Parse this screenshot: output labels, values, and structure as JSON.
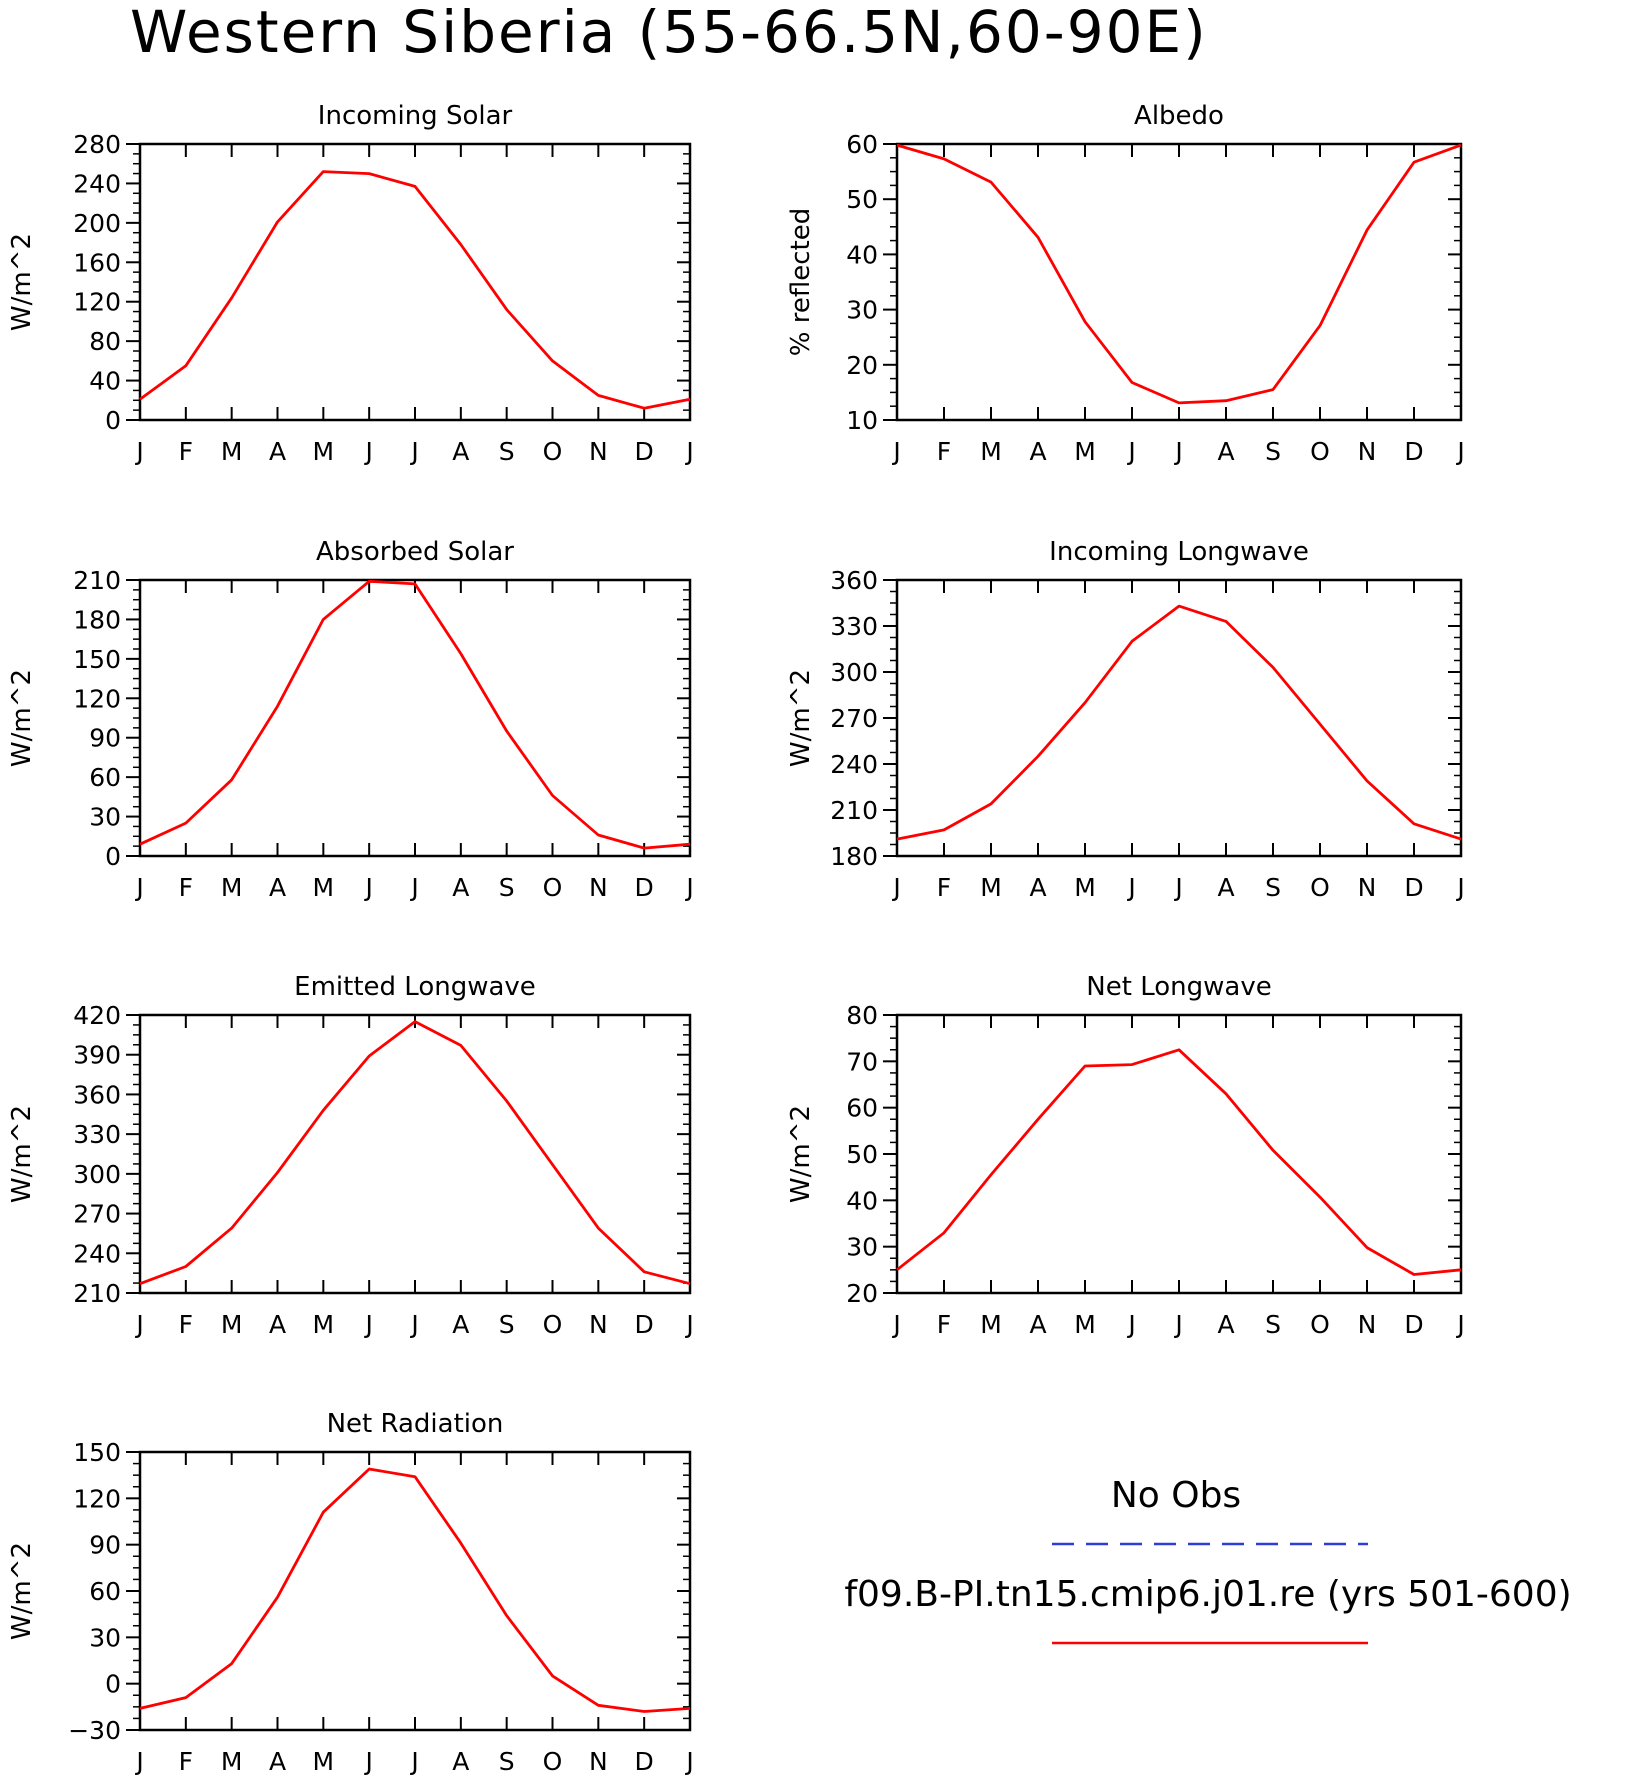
{
  "figure": {
    "title": "Western Siberia (55-66.5N,60-90E)"
  },
  "legend": {
    "obs_label": "No Obs",
    "obs_color": "#2b3fd6",
    "model_label": "f09.B-PI.tn15.cmip6.j01.re (yrs 501-600)",
    "model_color": "#ff0000"
  },
  "chart_data": [
    {
      "type": "line",
      "title": "Incoming Solar",
      "ylabel": "W/m^2",
      "categories": [
        "J",
        "F",
        "M",
        "A",
        "M",
        "J",
        "J",
        "A",
        "S",
        "O",
        "N",
        "D",
        "J"
      ],
      "ylim": [
        0,
        280
      ],
      "yticks": [
        0,
        40,
        80,
        120,
        160,
        200,
        240,
        280
      ],
      "series": [
        {
          "color": "#ff0000",
          "values": [
            21,
            55,
            124,
            201,
            252,
            250,
            237,
            178,
            112,
            60,
            25,
            12,
            21
          ]
        }
      ]
    },
    {
      "type": "line",
      "title": "Albedo",
      "ylabel": "% reflected",
      "categories": [
        "J",
        "F",
        "M",
        "A",
        "M",
        "J",
        "J",
        "A",
        "S",
        "O",
        "N",
        "D",
        "J"
      ],
      "ylim": [
        10,
        60
      ],
      "yticks": [
        10,
        20,
        30,
        40,
        50,
        60
      ],
      "series": [
        {
          "color": "#ff0000",
          "values": [
            59.8,
            57.3,
            53.1,
            43.1,
            27.8,
            16.8,
            13.1,
            13.5,
            15.5,
            27.1,
            44.4,
            56.7,
            59.8
          ]
        }
      ]
    },
    {
      "type": "line",
      "title": "Absorbed Solar",
      "ylabel": "W/m^2",
      "categories": [
        "J",
        "F",
        "M",
        "A",
        "M",
        "J",
        "J",
        "A",
        "S",
        "O",
        "N",
        "D",
        "J"
      ],
      "ylim": [
        0,
        210
      ],
      "yticks": [
        0,
        30,
        60,
        90,
        120,
        150,
        180,
        210
      ],
      "series": [
        {
          "color": "#ff0000",
          "values": [
            9,
            25,
            58,
            114,
            180,
            209,
            207,
            154,
            95,
            46,
            16,
            6,
            9
          ]
        }
      ]
    },
    {
      "type": "line",
      "title": "Incoming Longwave",
      "ylabel": "W/m^2",
      "categories": [
        "J",
        "F",
        "M",
        "A",
        "M",
        "J",
        "J",
        "A",
        "S",
        "O",
        "N",
        "D",
        "J"
      ],
      "ylim": [
        180,
        360
      ],
      "yticks": [
        180,
        210,
        240,
        270,
        300,
        330,
        360
      ],
      "series": [
        {
          "color": "#ff0000",
          "values": [
            191,
            197,
            214,
            245,
            280,
            320,
            343,
            333,
            303,
            266,
            229,
            201,
            191
          ]
        }
      ]
    },
    {
      "type": "line",
      "title": "Emitted Longwave",
      "ylabel": "W/m^2",
      "categories": [
        "J",
        "F",
        "M",
        "A",
        "M",
        "J",
        "J",
        "A",
        "S",
        "O",
        "N",
        "D",
        "J"
      ],
      "ylim": [
        210,
        420
      ],
      "yticks": [
        210,
        240,
        270,
        300,
        330,
        360,
        390,
        420
      ],
      "series": [
        {
          "color": "#ff0000",
          "values": [
            217,
            230,
            259,
            301,
            348,
            389,
            415,
            397,
            355,
            307,
            259,
            226,
            217
          ]
        }
      ]
    },
    {
      "type": "line",
      "title": "Net Longwave",
      "ylabel": "W/m^2",
      "categories": [
        "J",
        "F",
        "M",
        "A",
        "M",
        "J",
        "J",
        "A",
        "S",
        "O",
        "N",
        "D",
        "J"
      ],
      "ylim": [
        20,
        80
      ],
      "yticks": [
        20,
        30,
        40,
        50,
        60,
        70,
        80
      ],
      "series": [
        {
          "color": "#ff0000",
          "values": [
            25,
            33,
            45.5,
            57.5,
            69,
            69.3,
            72.5,
            63,
            50.8,
            40.7,
            29.8,
            24,
            25
          ]
        }
      ]
    },
    {
      "type": "line",
      "title": "Net Radiation",
      "ylabel": "W/m^2",
      "categories": [
        "J",
        "F",
        "M",
        "A",
        "M",
        "J",
        "J",
        "A",
        "S",
        "O",
        "N",
        "D",
        "J"
      ],
      "ylim": [
        -30,
        150
      ],
      "yticks": [
        -30,
        0,
        30,
        60,
        90,
        120,
        150
      ],
      "series": [
        {
          "color": "#ff0000",
          "values": [
            -16,
            -9,
            13,
            56,
            111,
            139,
            134,
            91,
            44,
            5,
            -14,
            -18,
            -16
          ]
        }
      ]
    }
  ]
}
